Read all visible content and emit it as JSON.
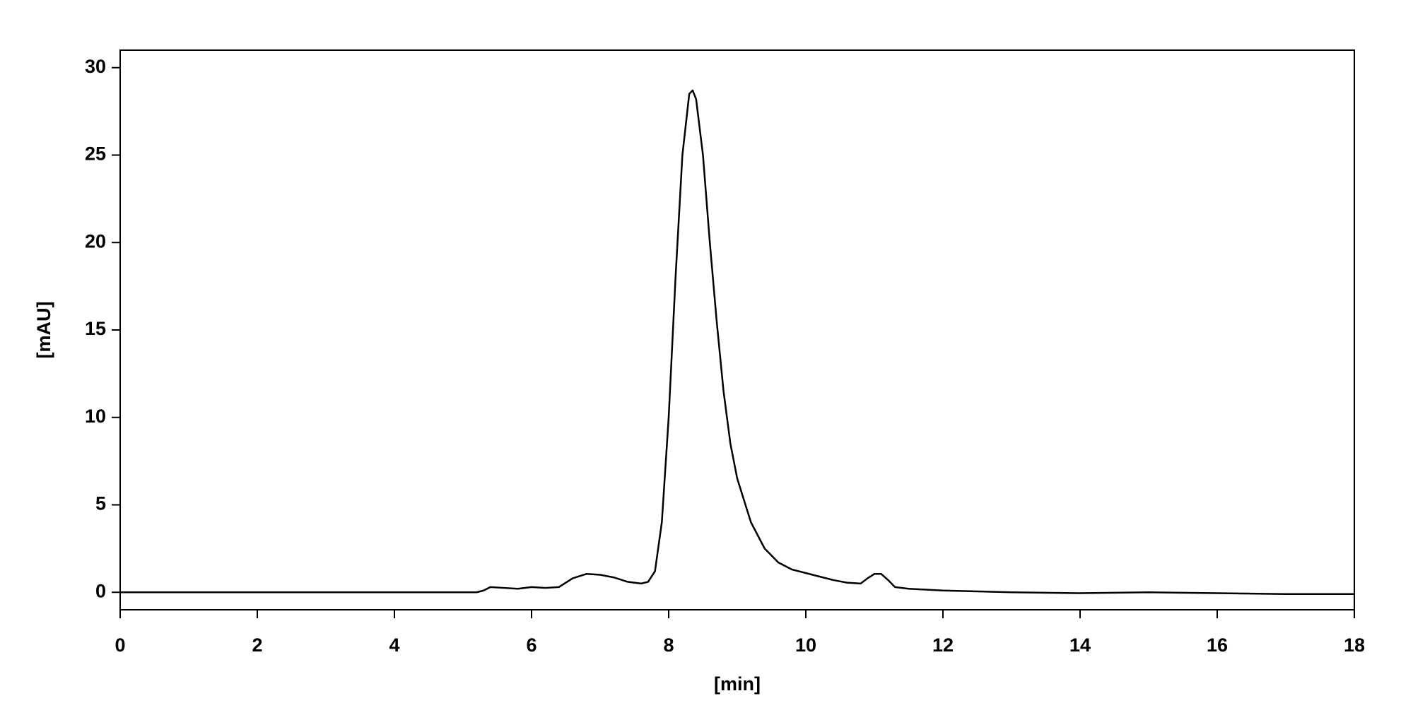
{
  "chart_data": {
    "type": "line",
    "x_label": "[min]",
    "y_label": "[mAU]",
    "x": [
      0,
      2,
      4,
      5.2,
      5.3,
      5.4,
      5.6,
      5.8,
      6.0,
      6.2,
      6.4,
      6.6,
      6.8,
      7.0,
      7.2,
      7.4,
      7.6,
      7.7,
      7.8,
      7.9,
      8.0,
      8.1,
      8.2,
      8.3,
      8.35,
      8.4,
      8.5,
      8.6,
      8.7,
      8.8,
      8.9,
      9.0,
      9.2,
      9.4,
      9.6,
      9.8,
      10.0,
      10.2,
      10.4,
      10.6,
      10.8,
      10.9,
      11.0,
      11.1,
      11.2,
      11.3,
      11.5,
      12,
      13,
      14,
      15,
      16,
      17,
      18
    ],
    "values": [
      0,
      0,
      0,
      0,
      0.1,
      0.3,
      0.25,
      0.2,
      0.3,
      0.25,
      0.3,
      0.8,
      1.05,
      1.0,
      0.85,
      0.6,
      0.5,
      0.6,
      1.2,
      4,
      10,
      18,
      25,
      28.5,
      28.7,
      28.2,
      25,
      20,
      15.5,
      11.5,
      8.5,
      6.5,
      4.0,
      2.5,
      1.7,
      1.3,
      1.1,
      0.9,
      0.7,
      0.55,
      0.5,
      0.8,
      1.05,
      1.05,
      0.7,
      0.3,
      0.2,
      0.1,
      0.0,
      -0.05,
      0.0,
      -0.05,
      -0.1,
      -0.1
    ],
    "color": "#000000",
    "xlim": [
      0,
      18
    ],
    "xticks": [
      0,
      2,
      4,
      6,
      8,
      10,
      12,
      14,
      16,
      18
    ],
    "ylim": [
      -1,
      31
    ],
    "yticks": [
      0,
      5,
      10,
      15,
      20,
      25,
      30
    ],
    "grid": false
  }
}
